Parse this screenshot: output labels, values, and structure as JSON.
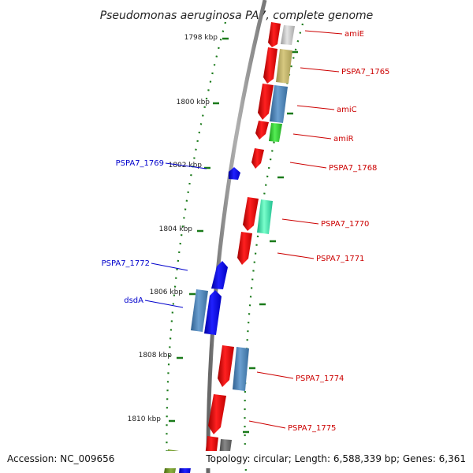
{
  "title": "Pseudomonas aeruginosa PA7, complete genome",
  "footer": {
    "accession": "Accession: NC_009656",
    "topology": "Topology: circular; Length: 6,588,339 bp; Genes: 6,361"
  },
  "colors": {
    "backbone": "#8a8a8a",
    "forward_gene": "#ff0000",
    "reverse_gene": "#0000ff",
    "scale_ticks": "#1a7a1a",
    "forward_label": "#cc0000",
    "reverse_label": "#0000cc"
  },
  "scale_labels": [
    {
      "text": "1798 kbp",
      "kbp": 1798
    },
    {
      "text": "1800 kbp",
      "kbp": 1800
    },
    {
      "text": "1802 kbp",
      "kbp": 1802
    },
    {
      "text": "1804 kbp",
      "kbp": 1804
    },
    {
      "text": "1806 kbp",
      "kbp": 1806
    },
    {
      "text": "1808 kbp",
      "kbp": 1808
    },
    {
      "text": "1810 kbp",
      "kbp": 1810
    }
  ],
  "forward_gene_labels": [
    {
      "text": "amiE"
    },
    {
      "text": "PSPA7_1765"
    },
    {
      "text": "amiC"
    },
    {
      "text": "amiR"
    },
    {
      "text": "PSPA7_1768"
    },
    {
      "text": "PSPA7_1770"
    },
    {
      "text": "PSPA7_1771"
    },
    {
      "text": "PSPA7_1774"
    },
    {
      "text": "PSPA7_1775"
    }
  ],
  "reverse_gene_labels": [
    {
      "text": "PSPA7_1769"
    },
    {
      "text": "PSPA7_1772"
    },
    {
      "text": "dsdA"
    }
  ]
}
